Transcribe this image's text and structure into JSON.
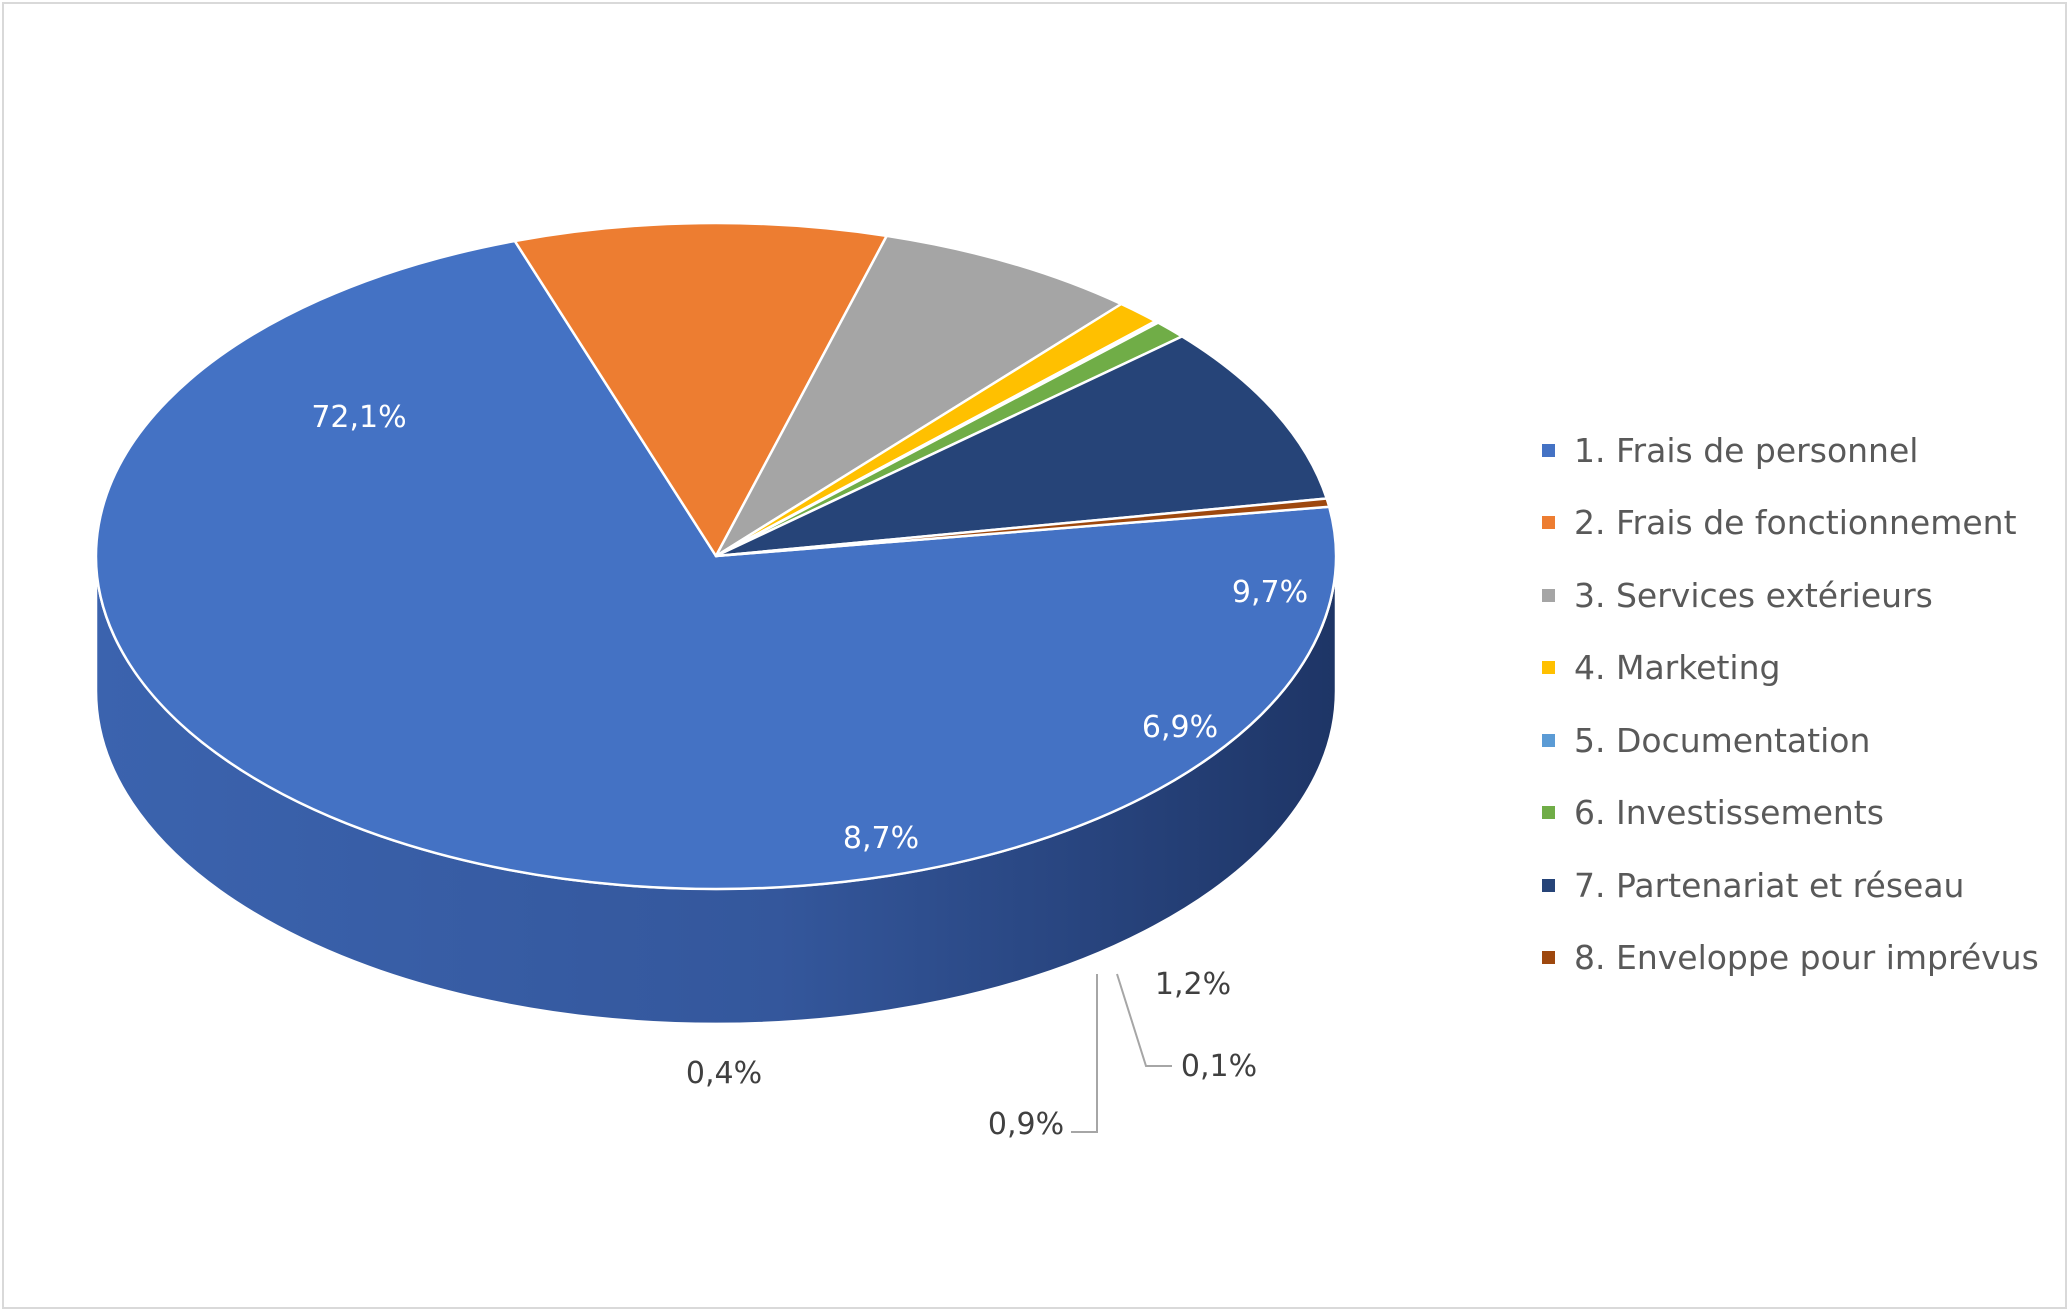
{
  "chart_data": {
    "type": "pie",
    "style": "3d-pie",
    "title": "",
    "legend_position": "right",
    "categories": [
      "1. Frais de personnel",
      "2. Frais de fonctionnement",
      "3. Services extérieurs",
      "4. Marketing",
      "5. Documentation",
      "6. Investissements",
      "7. Partenariat et réseau",
      "8. Enveloppe pour imprévus"
    ],
    "values": [
      72.1,
      9.7,
      6.9,
      1.2,
      0.1,
      0.9,
      8.7,
      0.4
    ],
    "labels": [
      "72,1%",
      "9,7%",
      "6,9%",
      "1,2%",
      "0,1%",
      "0,9%",
      "8,7%",
      "0,4%"
    ],
    "colors": [
      "#4472C4",
      "#ED7D31",
      "#A5A5A5",
      "#FFC000",
      "#5B9BD5",
      "#70AD47",
      "#264478",
      "#9E480E"
    ],
    "side_colors": [
      "#2E4F8C",
      "#5A2A07",
      "#444444",
      "#6B5000",
      "#1F4E79",
      "#264F18",
      "#0F1B33",
      "#5E2A08"
    ]
  }
}
